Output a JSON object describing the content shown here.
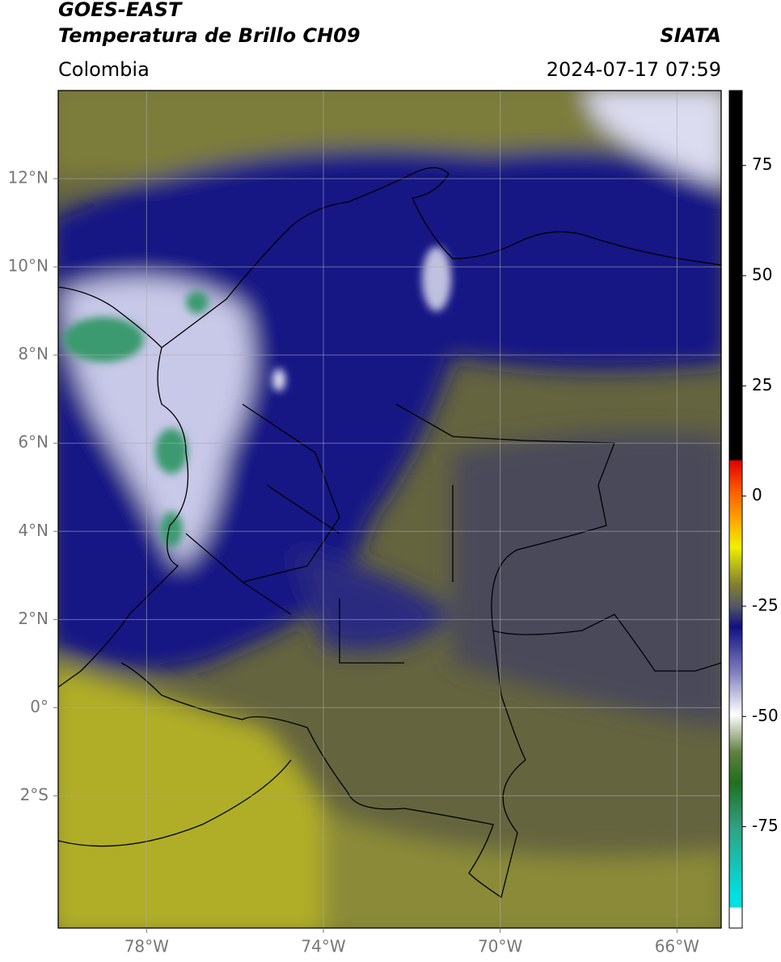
{
  "header": {
    "title": "GOES-EAST",
    "subtitle": "Temperatura de Brillo CH09",
    "source": "SIATA",
    "region": "Colombia",
    "datetime": "2024-07-17 07:59"
  },
  "map": {
    "xlim": [
      -80,
      -65
    ],
    "ylim": [
      -5,
      14
    ],
    "xticks": [
      {
        "value": -78,
        "label": "78°W"
      },
      {
        "value": -74,
        "label": "74°W"
      },
      {
        "value": -70,
        "label": "70°W"
      },
      {
        "value": -66,
        "label": "66°W"
      }
    ],
    "yticks": [
      {
        "value": 12,
        "label": "12°N"
      },
      {
        "value": 10,
        "label": "10°N"
      },
      {
        "value": 8,
        "label": "8°N"
      },
      {
        "value": 6,
        "label": "6°N"
      },
      {
        "value": 4,
        "label": "4°N"
      },
      {
        "value": 2,
        "label": "2°N"
      },
      {
        "value": 0,
        "label": "0°"
      },
      {
        "value": -2,
        "label": "2°S"
      }
    ],
    "grid": true
  },
  "colorbar": {
    "lim": [
      -98,
      92
    ],
    "ticks": [
      75,
      50,
      25,
      0,
      -25,
      -50,
      -75
    ]
  }
}
